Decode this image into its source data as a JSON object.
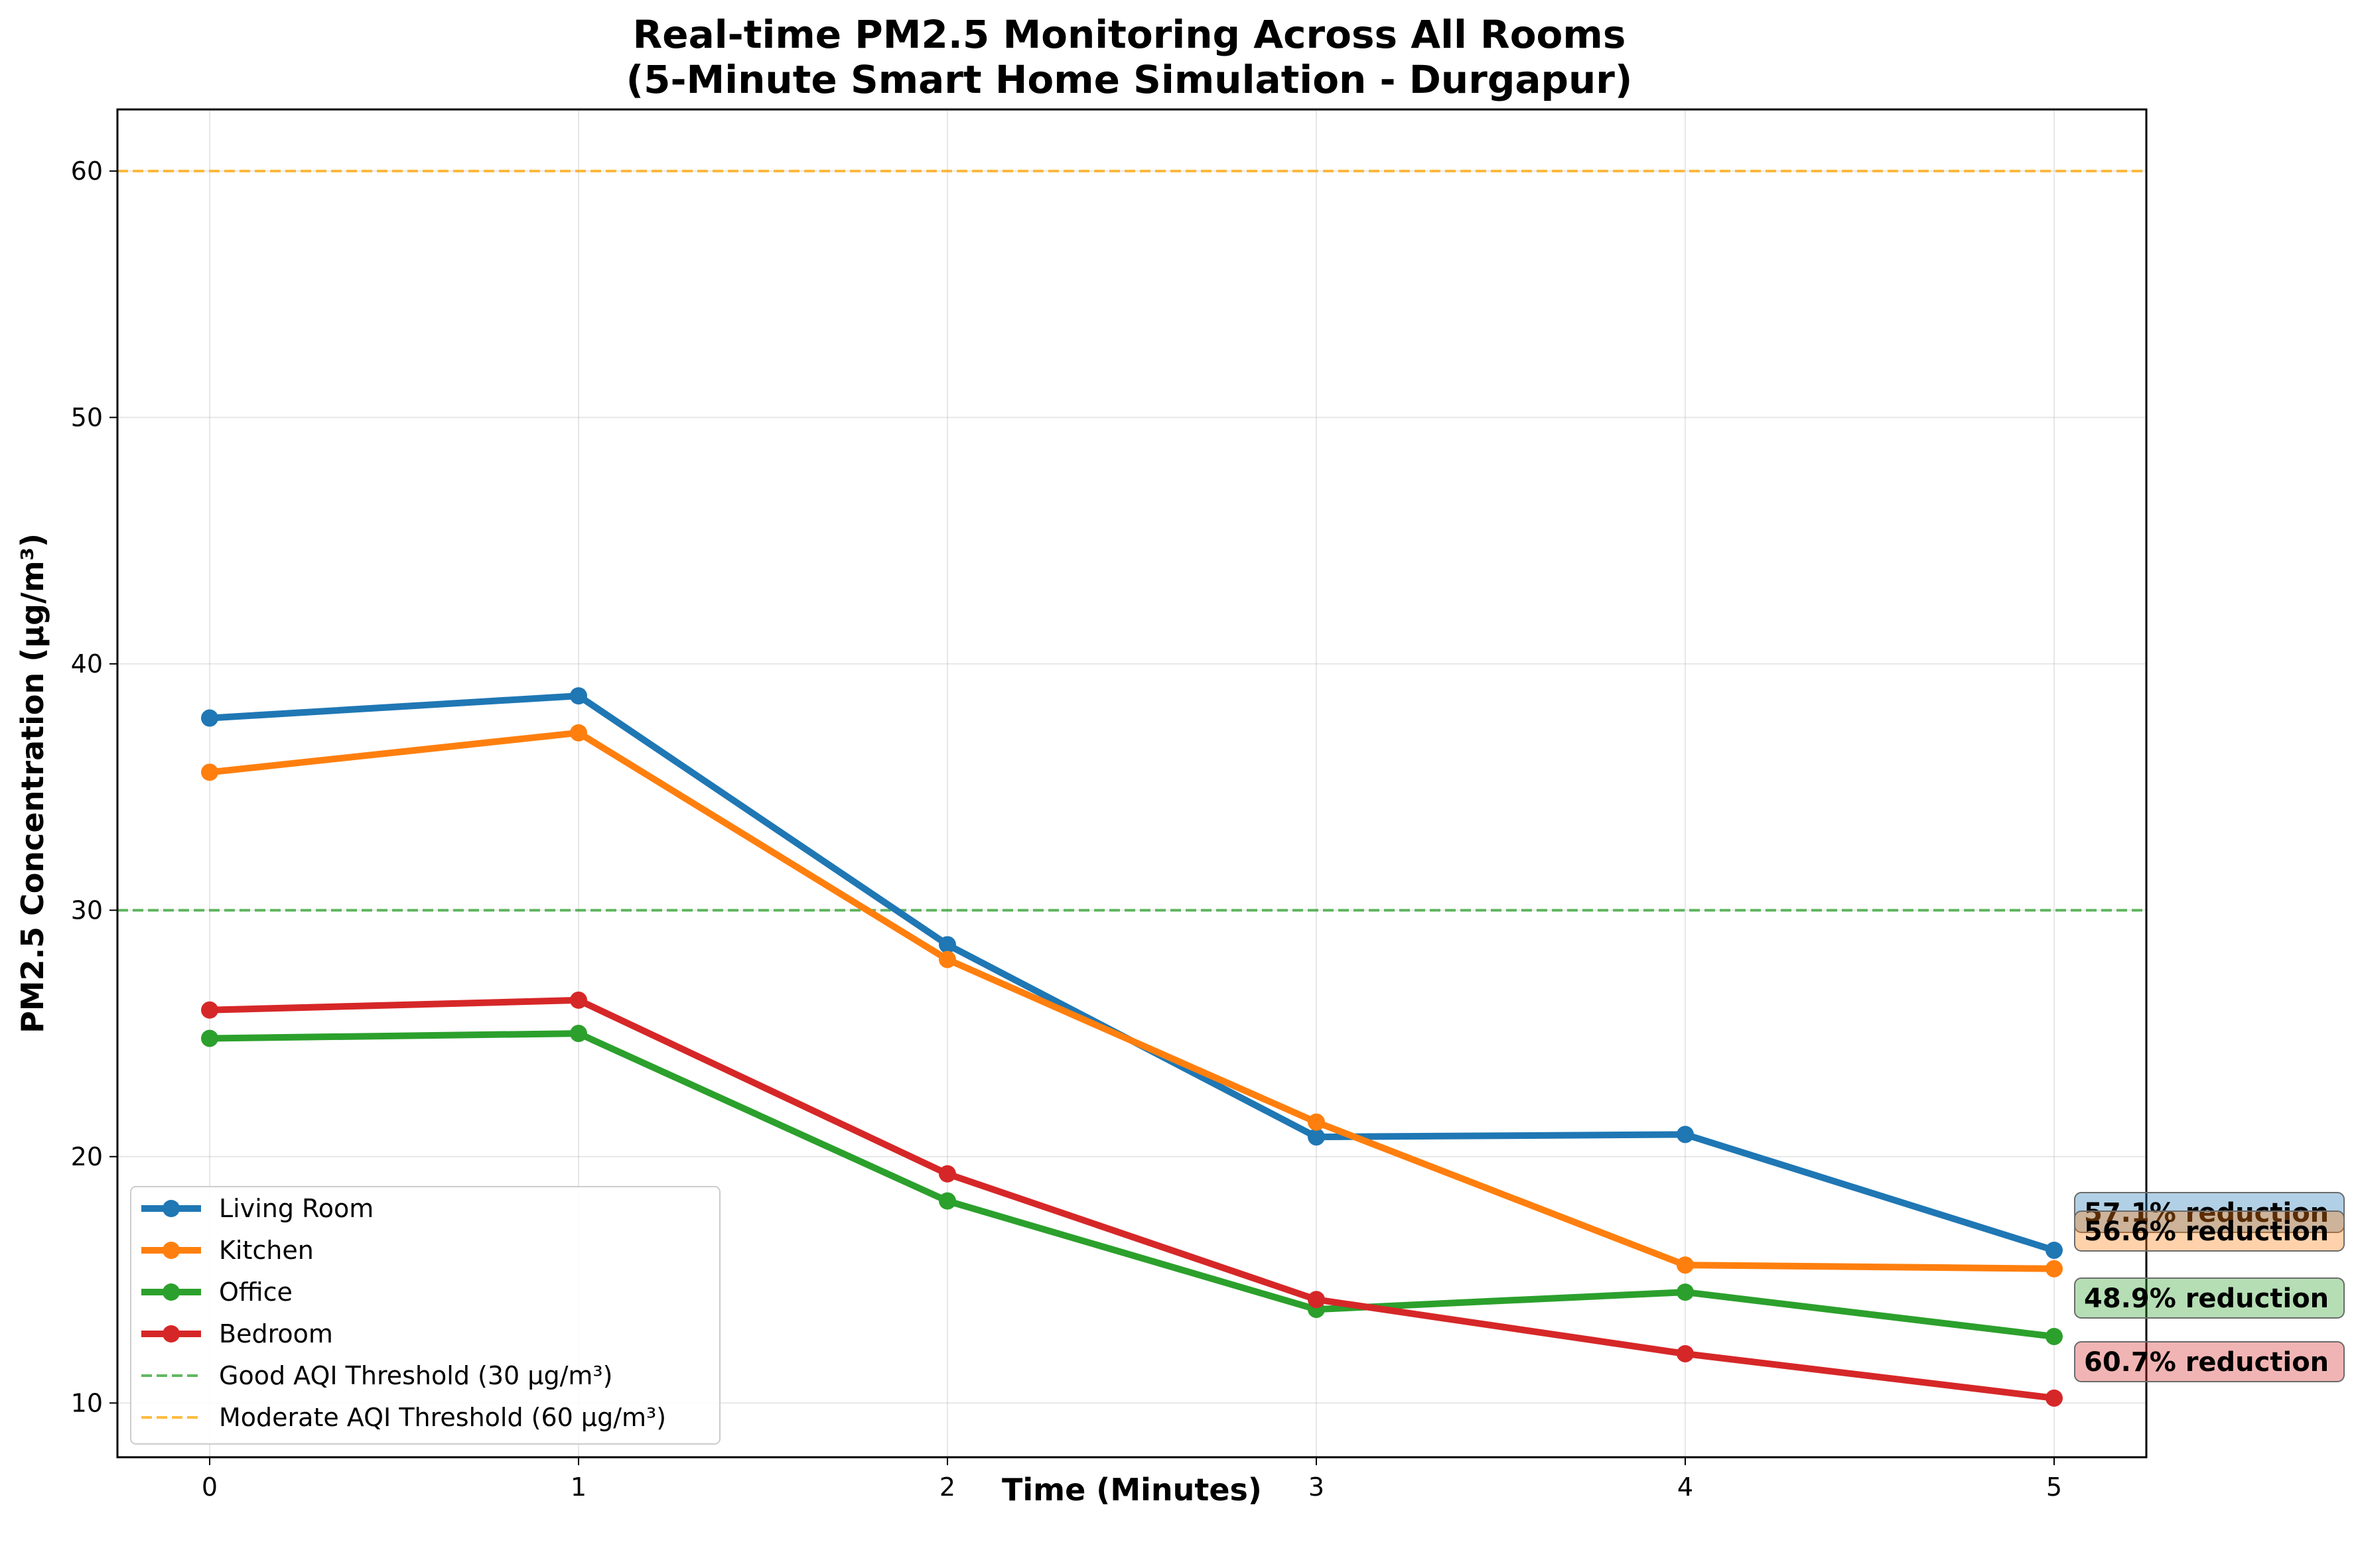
{
  "chart_data": {
    "type": "line",
    "title": "Real-time PM2.5 Monitoring Across All Rooms",
    "subtitle": "(5-Minute Smart Home Simulation - Durgapur)",
    "xlabel": "Time (Minutes)",
    "ylabel": "PM2.5 Concentration (μg/m³)",
    "x": [
      0,
      1,
      2,
      3,
      4,
      5
    ],
    "xlim": [
      -0.25,
      5.25
    ],
    "ylim": [
      7.8,
      62.5
    ],
    "yticks": [
      10,
      20,
      30,
      40,
      50,
      60
    ],
    "grid": true,
    "legend_position": "lower-left",
    "series": [
      {
        "name": "Living Room",
        "color": "#1f77b4",
        "values": [
          37.8,
          38.7,
          28.6,
          20.8,
          20.9,
          16.2
        ]
      },
      {
        "name": "Kitchen",
        "color": "#ff7f0e",
        "values": [
          35.6,
          37.2,
          28.0,
          21.4,
          15.6,
          15.45
        ]
      },
      {
        "name": "Office",
        "color": "#2ca02c",
        "values": [
          24.8,
          25.0,
          18.2,
          13.8,
          14.5,
          12.7
        ]
      },
      {
        "name": "Bedroom",
        "color": "#d62728",
        "values": [
          25.95,
          26.35,
          19.3,
          14.2,
          12.0,
          10.2
        ]
      }
    ],
    "thresholds": [
      {
        "name": "Good AQI Threshold (30 μg/m³)",
        "value": 30,
        "color": "#2ca02c"
      },
      {
        "name": "Moderate AQI Threshold (60 μg/m³)",
        "value": 60,
        "color": "#ffa500"
      }
    ],
    "annotations": [
      {
        "text": "57.1% reduction",
        "x": 5,
        "y": 16.2,
        "color": "#1f77b4"
      },
      {
        "text": "56.6% reduction",
        "x": 5,
        "y": 15.45,
        "color": "#ff7f0e"
      },
      {
        "text": "48.9% reduction",
        "x": 5,
        "y": 12.7,
        "color": "#2ca02c"
      },
      {
        "text": "60.7% reduction",
        "x": 5,
        "y": 10.2,
        "color": "#d62728"
      }
    ]
  }
}
